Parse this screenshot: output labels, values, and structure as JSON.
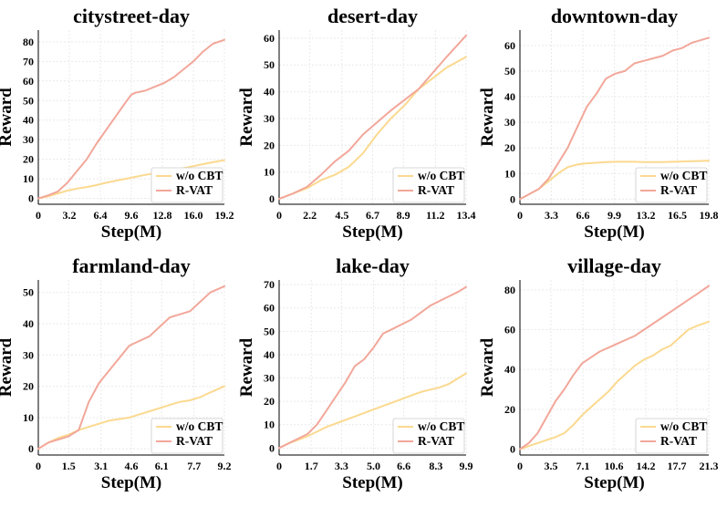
{
  "colors": {
    "r_vat": "#f2a79a",
    "wo_cbt": "#fbd98f"
  },
  "legend": {
    "wo_cbt": "w/o CBT",
    "r_vat": "R-VAT"
  },
  "chart_data": [
    {
      "type": "line",
      "title": "citystreet-day",
      "xlabel": "Step(M)",
      "ylabel": "Reward",
      "xticks": [
        "0",
        "3.2",
        "6.4",
        "9.6",
        "12.8",
        "16.0",
        "19.2"
      ],
      "xlim": [
        0,
        19.2
      ],
      "yticks": [
        0,
        10,
        20,
        30,
        40,
        50,
        60,
        70,
        80
      ],
      "ylim": [
        -3,
        86
      ],
      "legend_loc": "lower-right",
      "series": [
        {
          "name": "w/o CBT",
          "key": "wo_cbt",
          "x": [
            0,
            1,
            2,
            3,
            4,
            5,
            6,
            7,
            8,
            9,
            10,
            11,
            12,
            13,
            14,
            15,
            16,
            17,
            18,
            19.2
          ],
          "y": [
            0,
            1,
            2.5,
            4,
            5,
            5.8,
            6.8,
            8,
            9,
            10,
            11,
            12,
            12.8,
            13.5,
            14.5,
            15.5,
            16.5,
            17.5,
            18.5,
            19.5
          ]
        },
        {
          "name": "R-VAT",
          "key": "r_vat",
          "x": [
            0,
            1,
            2,
            3,
            4,
            5,
            6,
            7,
            8,
            9,
            9.6,
            10,
            11,
            12,
            13,
            14,
            15,
            16,
            17,
            18,
            19.2
          ],
          "y": [
            0,
            1.5,
            3.5,
            8,
            14,
            20,
            28,
            35,
            42,
            49,
            53,
            54,
            55,
            57,
            59,
            62,
            66,
            70,
            75,
            79,
            81
          ]
        }
      ]
    },
    {
      "type": "line",
      "title": "desert-day",
      "xlabel": "Step(M)",
      "ylabel": "Reward",
      "xticks": [
        "0",
        "2.2",
        "4.5",
        "6.7",
        "8.9",
        "11.2",
        "13.4"
      ],
      "xlim": [
        0,
        13.4
      ],
      "yticks": [
        0,
        10,
        20,
        30,
        40,
        50,
        60
      ],
      "ylim": [
        -2,
        63
      ],
      "legend_loc": "lower-right",
      "series": [
        {
          "name": "w/o CBT",
          "key": "wo_cbt",
          "x": [
            0,
            1,
            2,
            3,
            4,
            5,
            6,
            7,
            8,
            9,
            10,
            11,
            12,
            13.4
          ],
          "y": [
            0,
            2,
            4,
            7,
            9,
            12,
            17,
            24,
            30,
            35,
            41,
            45,
            49,
            53
          ]
        },
        {
          "name": "R-VAT",
          "key": "r_vat",
          "x": [
            0,
            1,
            2,
            3,
            4,
            5,
            6,
            7,
            8,
            9,
            10,
            11,
            12,
            13.4
          ],
          "y": [
            0,
            2,
            4.5,
            9,
            14,
            18,
            24,
            28.5,
            33,
            37,
            41,
            47,
            53,
            61
          ]
        }
      ]
    },
    {
      "type": "line",
      "title": "downtown-day",
      "xlabel": "Step(M)",
      "ylabel": "Reward",
      "xticks": [
        "0",
        "3.3",
        "6.6",
        "9.9",
        "13.2",
        "16.5",
        "19.8"
      ],
      "xlim": [
        0,
        19.8
      ],
      "yticks": [
        0,
        10,
        20,
        30,
        40,
        50,
        60
      ],
      "ylim": [
        -2,
        66
      ],
      "legend_loc": "lower-right",
      "series": [
        {
          "name": "w/o CBT",
          "key": "wo_cbt",
          "x": [
            0,
            1,
            2,
            3,
            4,
            5,
            6,
            7,
            8,
            9,
            10,
            11,
            12,
            13,
            14,
            15,
            16,
            17,
            18,
            19.8
          ],
          "y": [
            0,
            2,
            4,
            7,
            10,
            12.5,
            13.5,
            14,
            14.2,
            14.5,
            14.6,
            14.6,
            14.6,
            14.5,
            14.5,
            14.5,
            14.6,
            14.7,
            14.8,
            15
          ]
        },
        {
          "name": "R-VAT",
          "key": "r_vat",
          "x": [
            0,
            1,
            2,
            3,
            4,
            5,
            6,
            7,
            8,
            9,
            10,
            11,
            12,
            13,
            14,
            15,
            16,
            17,
            18,
            19.8
          ],
          "y": [
            0,
            2,
            4,
            8,
            14,
            20,
            28,
            36,
            41,
            47,
            49,
            50,
            53,
            54,
            55,
            56,
            58,
            59,
            61,
            63
          ]
        }
      ]
    },
    {
      "type": "line",
      "title": "farmland-day",
      "xlabel": "Step(M)",
      "ylabel": "Reward",
      "xticks": [
        "0",
        "1.5",
        "3.1",
        "4.6",
        "6.1",
        "7.7",
        "9.2"
      ],
      "xlim": [
        0,
        9.2
      ],
      "yticks": [
        0,
        10,
        20,
        30,
        40,
        50
      ],
      "ylim": [
        -2,
        54
      ],
      "legend_loc": "lower-right",
      "series": [
        {
          "name": "w/o CBT",
          "key": "wo_cbt",
          "x": [
            0,
            0.5,
            1,
            1.5,
            2,
            2.5,
            3,
            3.5,
            4,
            4.5,
            5,
            5.5,
            6,
            6.5,
            7,
            7.5,
            8,
            8.5,
            9.2
          ],
          "y": [
            0,
            2,
            3.5,
            4.5,
            6,
            7,
            8,
            9,
            9.5,
            10,
            11,
            12,
            13,
            14,
            15,
            15.5,
            16.5,
            18,
            20
          ]
        },
        {
          "name": "R-VAT",
          "key": "r_vat",
          "x": [
            0,
            0.5,
            1,
            1.5,
            2,
            2.5,
            3,
            3.5,
            4,
            4.5,
            5,
            5.5,
            6,
            6.5,
            7,
            7.5,
            8,
            8.5,
            9.2
          ],
          "y": [
            0,
            2,
            3,
            4,
            6,
            15,
            21,
            25,
            29,
            33,
            34.5,
            36,
            39,
            42,
            43,
            44,
            47,
            50,
            52
          ]
        }
      ]
    },
    {
      "type": "line",
      "title": "lake-day",
      "xlabel": "Step(M)",
      "ylabel": "Reward",
      "xticks": [
        "0",
        "1.7",
        "3.3",
        "5.0",
        "6.6",
        "8.3",
        "9.9"
      ],
      "xlim": [
        0,
        9.9
      ],
      "yticks": [
        0,
        10,
        20,
        30,
        40,
        50,
        60,
        70
      ],
      "ylim": [
        -3,
        72
      ],
      "legend_loc": "lower-right",
      "series": [
        {
          "name": "w/o CBT",
          "key": "wo_cbt",
          "x": [
            0,
            0.5,
            1,
            1.5,
            2,
            2.5,
            3,
            3.5,
            4,
            4.5,
            5,
            5.5,
            6,
            6.5,
            7,
            7.5,
            8,
            8.5,
            9,
            9.5,
            9.9
          ],
          "y": [
            0,
            2,
            3.5,
            5,
            7,
            9,
            10.5,
            12,
            13.5,
            15,
            16.5,
            18,
            19.5,
            21,
            22.5,
            24,
            25,
            26,
            27.5,
            30,
            32
          ]
        },
        {
          "name": "R-VAT",
          "key": "r_vat",
          "x": [
            0,
            0.5,
            1,
            1.5,
            2,
            2.5,
            3,
            3.5,
            4,
            4.5,
            5,
            5.5,
            6,
            6.5,
            7,
            7.5,
            8,
            8.5,
            9,
            9.5,
            9.9
          ],
          "y": [
            0,
            2,
            4,
            6,
            10,
            16,
            22,
            28,
            35,
            38,
            43,
            49,
            51,
            53,
            55,
            58,
            61,
            63,
            65,
            67,
            69
          ]
        }
      ]
    },
    {
      "type": "line",
      "title": "village-day",
      "xlabel": "Step(M)",
      "ylabel": "Reward",
      "xticks": [
        "0",
        "3.5",
        "7.1",
        "10.6",
        "14.2",
        "17.7",
        "21.3"
      ],
      "xlim": [
        0,
        21.3
      ],
      "yticks": [
        0,
        20,
        40,
        60,
        80
      ],
      "ylim": [
        -3,
        85
      ],
      "legend_loc": "lower-right",
      "series": [
        {
          "name": "w/o CBT",
          "key": "wo_cbt",
          "x": [
            0,
            1,
            2,
            3,
            4,
            5,
            6,
            7,
            8,
            9,
            10,
            11,
            12,
            13,
            14,
            15,
            16,
            17,
            18,
            19,
            20,
            21.3
          ],
          "y": [
            0,
            1.5,
            3,
            4.5,
            6,
            8,
            12,
            17,
            21,
            25,
            29,
            34,
            38,
            42,
            45,
            47,
            50,
            52,
            56,
            60,
            62,
            64
          ]
        },
        {
          "name": "R-VAT",
          "key": "r_vat",
          "x": [
            0,
            1,
            2,
            3,
            4,
            5,
            6,
            7,
            8,
            9,
            10,
            11,
            12,
            13,
            14,
            15,
            16,
            17,
            18,
            19,
            20,
            21.3
          ],
          "y": [
            0,
            3,
            8,
            16,
            24,
            30,
            37,
            43,
            46,
            49,
            51,
            53,
            55,
            57,
            60,
            63,
            66,
            69,
            72,
            75,
            78,
            82
          ]
        }
      ]
    }
  ]
}
